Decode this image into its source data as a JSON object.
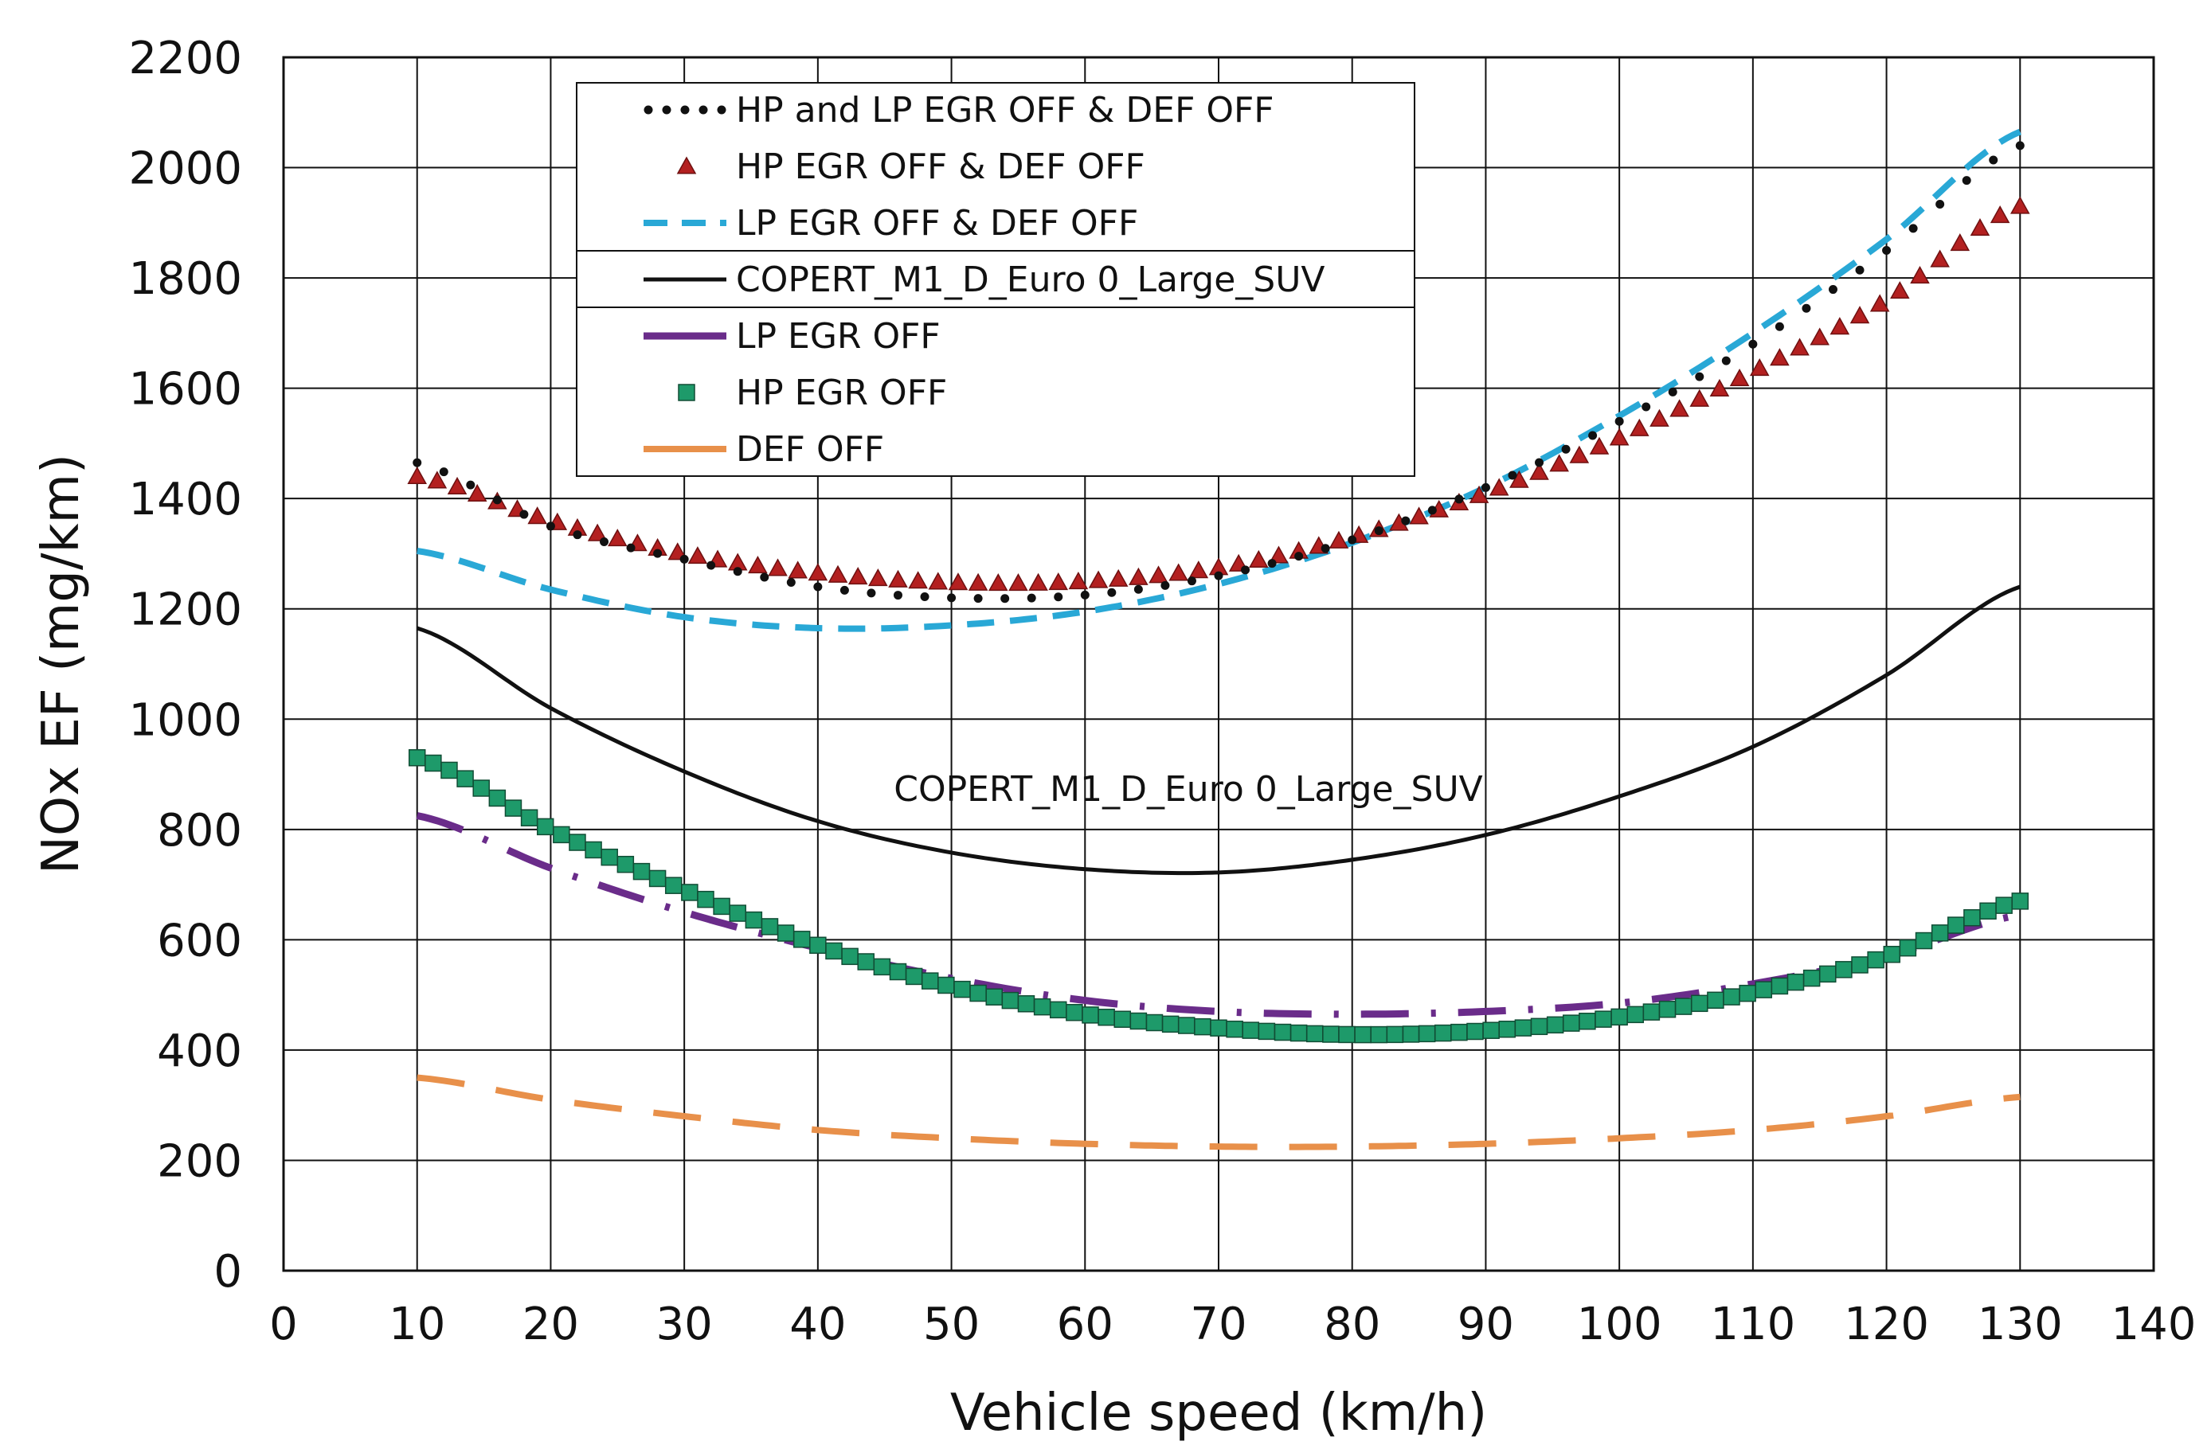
{
  "chart_data": {
    "type": "line",
    "title": "",
    "xlabel": "Vehicle speed (km/h)",
    "ylabel": "NOx EF (mg/km)",
    "xlim": [
      0,
      140
    ],
    "ylim": [
      0,
      2200
    ],
    "xticks": [
      0,
      10,
      20,
      30,
      40,
      50,
      60,
      70,
      80,
      90,
      100,
      110,
      120,
      130,
      140
    ],
    "yticks": [
      0,
      200,
      400,
      600,
      800,
      1000,
      1200,
      1400,
      1600,
      1800,
      2000,
      2200
    ],
    "grid": true,
    "legend_position": "top-left-inside",
    "annotation": "COPERT_M1_D_Euro 0_Large_SUV",
    "x": [
      10,
      20,
      30,
      40,
      50,
      60,
      70,
      80,
      90,
      100,
      110,
      120,
      130
    ],
    "series": [
      {
        "name": "HP and LP EGR OFF & DEF OFF",
        "color": "#111111",
        "style": "dots",
        "values": [
          1465,
          1350,
          1290,
          1240,
          1220,
          1225,
          1260,
          1325,
          1420,
          1540,
          1680,
          1850,
          2040
        ]
      },
      {
        "name": "HP EGR OFF & DEF OFF",
        "color": "#b32020",
        "style": "triangles",
        "values": [
          1440,
          1360,
          1300,
          1265,
          1248,
          1250,
          1275,
          1330,
          1410,
          1510,
          1630,
          1760,
          1930
        ]
      },
      {
        "name": "LP EGR OFF & DEF OFF",
        "color": "#29a8d6",
        "style": "dashed",
        "values": [
          1305,
          1235,
          1185,
          1165,
          1170,
          1195,
          1245,
          1320,
          1420,
          1550,
          1700,
          1870,
          2065
        ]
      },
      {
        "name": "COPERT_M1_D_Euro 0_Large_SUV",
        "color": "#111111",
        "style": "solid",
        "values": [
          1165,
          1020,
          905,
          815,
          758,
          728,
          722,
          745,
          790,
          860,
          950,
          1080,
          1240
        ]
      },
      {
        "name": "LP EGR OFF",
        "color": "#6a2c8a",
        "style": "dashdot",
        "values": [
          825,
          730,
          650,
          585,
          530,
          490,
          470,
          465,
          470,
          485,
          520,
          570,
          645
        ]
      },
      {
        "name": "HP EGR OFF",
        "color": "#1e9a6a",
        "style": "squares",
        "values": [
          930,
          800,
          690,
          590,
          515,
          465,
          440,
          428,
          435,
          460,
          505,
          570,
          670
        ]
      },
      {
        "name": "DEF OFF",
        "color": "#e8904a",
        "style": "longdash",
        "values": [
          350,
          310,
          280,
          255,
          240,
          230,
          225,
          225,
          230,
          240,
          255,
          280,
          315
        ]
      }
    ]
  }
}
